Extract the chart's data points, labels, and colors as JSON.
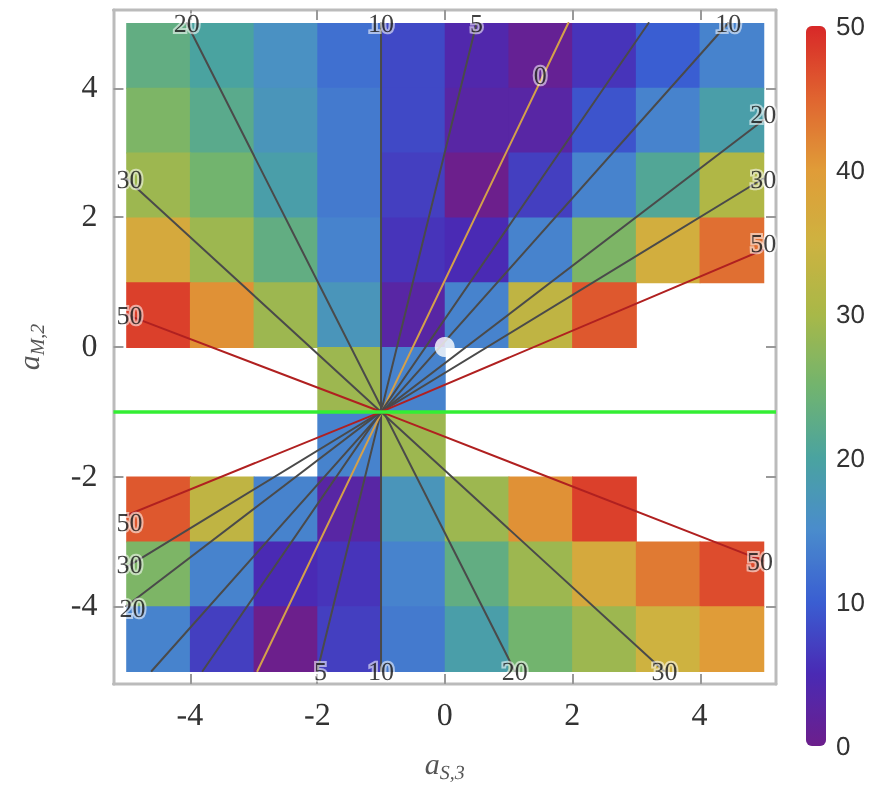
{
  "chart_data": {
    "type": "heatmap",
    "xlabel": "a$_{S,3}$",
    "ylabel": "a$_{M,2}$",
    "xlim": [
      -5.2,
      5.2
    ],
    "ylim": [
      -5.2,
      5.2
    ],
    "xticks": [
      -4,
      -2,
      0,
      2,
      4
    ],
    "yticks": [
      -4,
      -2,
      0,
      2,
      4
    ],
    "clim": [
      0,
      50
    ],
    "cticks": [
      0,
      10,
      20,
      30,
      40,
      50
    ],
    "x": [
      -4.5,
      -3.5,
      -2.5,
      -1.5,
      -0.5,
      0.5,
      1.5,
      2.5,
      3.5,
      4.5
    ],
    "y": [
      4.5,
      3.5,
      2.5,
      1.5,
      0.5,
      -0.5,
      -1.5,
      -2.5,
      -3.5,
      -4.5
    ],
    "cells": [
      [
        23,
        20,
        16,
        12,
        8,
        4,
        1,
        6,
        10,
        14
      ],
      [
        26,
        22,
        17,
        13,
        8,
        3,
        3,
        9,
        14,
        19
      ],
      [
        29,
        25,
        19,
        13,
        7,
        0,
        7,
        14,
        21,
        31
      ],
      [
        37,
        29,
        23,
        14,
        6,
        5,
        14,
        26,
        36,
        44
      ],
      [
        48,
        41,
        29,
        17,
        3,
        14,
        33,
        46,
        null,
        null
      ],
      [
        null,
        null,
        null,
        29,
        14,
        null,
        null,
        null,
        null,
        null
      ],
      [
        null,
        null,
        null,
        14,
        29,
        null,
        null,
        null,
        null,
        null
      ],
      [
        46,
        33,
        14,
        3,
        17,
        29,
        41,
        48,
        null,
        null
      ],
      [
        26,
        14,
        5,
        6,
        14,
        23,
        29,
        37,
        43,
        47
      ],
      [
        14,
        7,
        0,
        7,
        13,
        19,
        25,
        29,
        35,
        40
      ]
    ],
    "series": [
      {
        "type": "line",
        "color": "#4a4a4a",
        "x": [
          -4.05,
          1.1
        ],
        "values": [
          5,
          -5
        ]
      },
      {
        "type": "line",
        "color": "#4a4a4a",
        "x": [
          -1,
          -1
        ],
        "values": [
          5,
          -5
        ]
      },
      {
        "type": "line",
        "color": "#4a4a4a",
        "x": [
          0.5,
          -2
        ],
        "values": [
          5,
          -5
        ]
      },
      {
        "type": "line",
        "color": "#d4a04a",
        "x": [
          1.94,
          -2.94
        ],
        "values": [
          5,
          -5
        ]
      },
      {
        "type": "line",
        "color": "#4a4a4a",
        "x": [
          3.2,
          -3.8
        ],
        "values": [
          5,
          -5
        ]
      },
      {
        "type": "line",
        "color": "#4a4a4a",
        "x": [
          4.45,
          -4.6
        ],
        "values": [
          5,
          -5
        ]
      },
      {
        "type": "line",
        "color": "#4a4a4a",
        "x": [
          5,
          -5
        ],
        "values": [
          3.5,
          -4
        ]
      },
      {
        "type": "line",
        "color": "#4a4a4a",
        "x": [
          5,
          -5
        ],
        "values": [
          2.6,
          -3.4
        ]
      },
      {
        "type": "line",
        "color": "#4a4a4a",
        "x": [
          -5,
          3.44
        ],
        "values": [
          2.6,
          -5
        ]
      },
      {
        "type": "line",
        "color": "#b02020",
        "x": [
          -5,
          -1,
          5,
          -1,
          -5,
          -1,
          5
        ],
        "values": [
          0.5,
          -1,
          1.5,
          null,
          -2.6,
          -1,
          -3.3
        ]
      },
      {
        "type": "scatter",
        "color": "#ffffff",
        "marker": "circle",
        "x": [
          0
        ],
        "values": [
          0
        ]
      }
    ],
    "ref_lines": [
      {
        "axis": "y",
        "value": -1,
        "color": "#33ee33"
      }
    ],
    "annotations": [
      {
        "text": "20",
        "x": -4.05,
        "y": 5
      },
      {
        "text": "10",
        "x": -1,
        "y": 5
      },
      {
        "text": "5",
        "x": 0.5,
        "y": 5
      },
      {
        "text": "10",
        "x": 4.45,
        "y": 5
      },
      {
        "text": "0",
        "x": 1.5,
        "y": 4.2
      },
      {
        "text": "20",
        "x": 5,
        "y": 3.6
      },
      {
        "text": "30",
        "x": 5,
        "y": 2.6
      },
      {
        "text": "50",
        "x": 5,
        "y": 1.6
      },
      {
        "text": "30",
        "x": -4.95,
        "y": 2.6
      },
      {
        "text": "50",
        "x": -4.95,
        "y": 0.5
      },
      {
        "text": "50",
        "x": -4.95,
        "y": -2.7
      },
      {
        "text": "30",
        "x": -4.95,
        "y": -3.35
      },
      {
        "text": "20",
        "x": -4.9,
        "y": -4.03
      },
      {
        "text": "5",
        "x": -1.95,
        "y": -5
      },
      {
        "text": "10",
        "x": -1,
        "y": -5
      },
      {
        "text": "20",
        "x": 1.1,
        "y": -5
      },
      {
        "text": "30",
        "x": 3.45,
        "y": -5
      },
      {
        "text": "50",
        "x": 4.95,
        "y": -3.3
      }
    ]
  }
}
